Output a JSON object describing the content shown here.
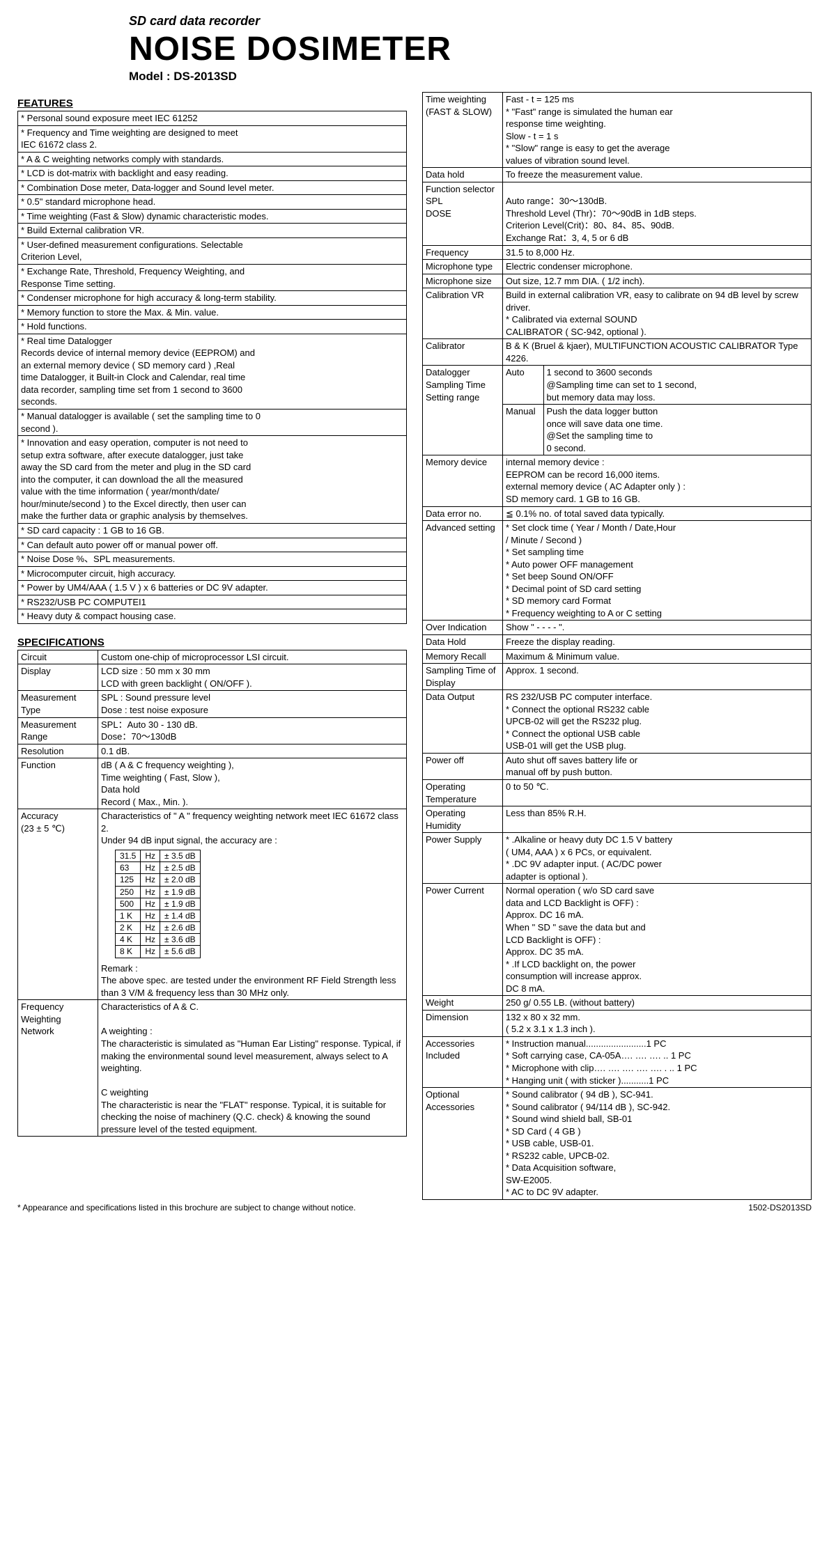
{
  "header": {
    "subtitle": "SD card data recorder",
    "title": "NOISE DOSIMETER",
    "model": "Model : DS-2013SD"
  },
  "features_heading": "FEATURES",
  "features": [
    "* Personal sound exposure meet IEC 61252",
    "* Frequency and Time weighting are designed to meet\n   IEC 61672 class 2.",
    "* A & C weighting networks comply with standards.",
    "* LCD is dot-matrix with backlight and easy reading.",
    "* Combination Dose meter, Data-logger and Sound level meter.",
    "* 0.5\" standard microphone head.",
    "* Time weighting (Fast & Slow) dynamic characteristic modes.",
    "* Build External calibration VR.",
    "* User-defined measurement configurations. Selectable\n   Criterion Level,",
    "* Exchange Rate, Threshold, Frequency Weighting, and\n   Response Time setting.",
    "* Condenser microphone for high accuracy & long-term stability.",
    "* Memory function to store the Max. & Min. value.",
    "* Hold  functions.",
    "* Real time Datalogger\n   Records device of internal memory device (EEPROM) and\n   an external memory device ( SD memory card ) ,Real\n   time Datalogger, it Built-in  Clock and Calendar, real time\n   data recorder, sampling time set from 1 second to 3600\n   seconds.",
    "* Manual datalogger is available ( set the sampling time to 0\n   second ).",
    "*  Innovation and easy operation,  computer is not need to\n   setup extra software, after execute datalogger, just take\n   away the SD card from the meter and plug in the SD card\n   into the computer, it can download the all the measured\n   value with the time information ( year/month/date/\n   hour/minute/second ) to the Excel directly, then user can\n   make the further data or graphic analysis by themselves.",
    "* SD card capacity : 1 GB to 16 GB.",
    "* Can default auto power off or manual power off.",
    "*  Noise Dose %、SPL measurements.",
    "* Microcomputer circuit, high accuracy.",
    "* Power by UM4/AAA ( 1.5 V ) x 6 batteries or DC 9V adapter.",
    "* RS232/USB PC COMPUTEI1",
    "* Heavy duty & compact housing case."
  ],
  "specs_heading": "SPECIFICATIONS",
  "specs_left": [
    {
      "k": "Circuit",
      "v": "Custom one-chip of microprocessor LSI circuit."
    },
    {
      "k": "Display",
      "v": "LCD size : 50 mm x 30 mm\nLCD with green backlight ( ON/OFF )."
    },
    {
      "k": "Measurement Type",
      "v": "SPL : Sound pressure level\nDose : test noise exposure"
    },
    {
      "k": "Measurement Range",
      "v": "SPL：Auto 30 - 130 dB.\nDose：70～130dB"
    },
    {
      "k": "Resolution",
      "v": "0.1 dB."
    },
    {
      "k": "Function",
      "v": "dB ( A & C frequency weighting ),\nTime weighting ( Fast, Slow ),\nData hold\nRecord ( Max., Min. )."
    },
    {
      "k": "Accuracy\n(23 ± 5 ℃)",
      "v": "__ACCURACY__"
    },
    {
      "k": "Frequency Weighting Network",
      "v": "Characteristics of A & C.\n\nA weighting :\nThe characteristic is simulated as \"Human Ear Listing\" response. Typical, if making the environmental sound level measurement, always select to A weighting.\n\nC weighting\nThe characteristic is near the \"FLAT\" response. Typical, it is suitable for checking the  noise of machinery (Q.C. check) & knowing the sound pressure level of the tested  equipment."
    }
  ],
  "accuracy": {
    "intro": "Characteristics of \" A \" frequency weighting network meet IEC 61672 class 2.\nUnder 94 dB input signal,  the accuracy are :",
    "rows": [
      [
        "31.5",
        "Hz",
        "± 3.5 dB"
      ],
      [
        "63",
        "Hz",
        "± 2.5 dB"
      ],
      [
        "125",
        "Hz",
        "± 2.0 dB"
      ],
      [
        "250",
        "Hz",
        "± 1.9 dB"
      ],
      [
        "500",
        "Hz",
        "± 1.9 dB"
      ],
      [
        "1 K",
        "Hz",
        "± 1.4 dB"
      ],
      [
        "2 K",
        "Hz",
        "± 2.6 dB"
      ],
      [
        "4 K",
        "Hz",
        "± 3.6 dB"
      ],
      [
        "8 K",
        "Hz",
        "± 5.6 dB"
      ]
    ],
    "remark": "Remark :\nThe above spec. are tested under the environment  RF Field Strength less than 3 V/M & frequency less than 30 MHz only."
  },
  "specs_right": [
    {
      "k": "Time weighting (FAST & SLOW)",
      "v": "Fast - t = 125 ms\n*  \"Fast\" range is simulated the human ear\n    response time weighting.\nSlow - t = 1 s\n*  \"Slow\" range is easy to get the average\n    values of vibration sound level."
    },
    {
      "k": "Data hold",
      "v": "To freeze the measurement value."
    },
    {
      "k": "Function selector\n    SPL\n    DOSE",
      "v": "\nAuto range：30～130dB.\nThreshold Level (Thr)：70～90dB in 1dB steps.\nCriterion Level(Crit)：80、84、85、90dB.\nExchange Rat：3, 4, 5 or 6 dB"
    },
    {
      "k": "Frequency",
      "v": "31.5 to 8,000 Hz."
    },
    {
      "k": "Microphone type",
      "v": "Electric condenser microphone."
    },
    {
      "k": "Microphone size",
      "v": "Out size, 12.7 mm DIA. ( 1/2 inch)."
    },
    {
      "k": "Calibration VR",
      "v": "Build in external calibration VR, easy to calibrate on 94 dB level by screw driver.\n*  Calibrated via external SOUND\n    CALIBRATOR ( SC-942, optional )."
    },
    {
      "k": "Calibrator",
      "v": "B & K (Bruel & kjaer), MULTIFUNCTION ACOUSTIC CALIBRATOR Type 4226."
    },
    {
      "k": "Datalogger Sampling Time Setting range",
      "v": "__SAMPLING__"
    },
    {
      "k": "Memory device",
      "v": "internal memory device :\n  EEPROM  can be record 16,000 items.\nexternal memory device ( AC Adapter only ) :\n  SD memory card. 1 GB to 16 GB."
    },
    {
      "k": "Data error no.",
      "v": "≦ 0.1% no. of total saved data typically."
    },
    {
      "k": "Advanced setting",
      "v": "*  Set clock time ( Year / Month / Date,Hour\n   / Minute / Second )\n*   Set sampling time\n*  Auto power OFF management\n*  Set beep Sound ON/OFF\n*  Decimal point of SD card setting\n*  SD memory card Format\n*  Frequency weighting  to A or C  setting"
    },
    {
      "k": "Over Indication",
      "v": "Show \" - - - - \"."
    },
    {
      "k": "Data Hold",
      "v": "Freeze the display reading."
    },
    {
      "k": "Memory Recall",
      "v": "Maximum & Minimum value."
    },
    {
      "k": "Sampling Time of Display",
      "v": "Approx. 1 second."
    },
    {
      "k": "Data Output",
      "v": "RS 232/USB PC computer interface.\n*  Connect the optional RS232 cable\n    UPCB-02 will get the RS232 plug.\n*  Connect the optional USB cable\n    USB-01 will get the USB plug."
    },
    {
      "k": "Power off",
      "v": "Auto shut off saves battery life or\nmanual off by push button."
    },
    {
      "k": "Operating Temperature",
      "v": "0 to 50 ℃."
    },
    {
      "k": "Operating Humidity",
      "v": "Less than 85% R.H."
    },
    {
      "k": "Power Supply",
      "v": "* .Alkaline or heavy duty DC 1.5 V battery\n    ( UM4, AAA ) x 6 PCs,  or equivalent.\n* .DC 9V adapter input. ( AC/DC power\n    adapter is optional )."
    },
    {
      "k": "Power Current",
      "v": "Normal operation ( w/o SD card save\ndata and LCD Backlight is OFF) :\n   Approx. DC  16  mA.\nWhen \" SD \" save the data but  and\nLCD Backlight is OFF) :\n   Approx. DC 35  mA.\n* .If LCD backlight on, the power\n    consumption will increase approx.\n    DC 8  mA."
    },
    {
      "k": "Weight",
      "v": "250 g/ 0.55 LB. (without battery)"
    },
    {
      "k": "Dimension",
      "v": "132 x 80 x 32 mm.\n( 5.2 x 3.1 x 1.3 inch )."
    },
    {
      "k": "Accessories Included",
      "v": "*  Instruction manual........................1 PC\n*  Soft carrying case, CA-05A…. …. …. .. 1 PC\n*  Microphone with clip…. …. …. …. …. . .. 1 PC\n*  Hanging unit ( with sticker )...........1 PC"
    },
    {
      "k": "Optional Accessories",
      "v": "*  Sound calibrator ( 94 dB ), SC-941.\n*  Sound calibrator ( 94/114 dB ), SC-942.\n*  Sound wind shield ball, SB-01\n*  SD Card ( 4 GB )\n*  USB cable, USB-01.\n*  RS232 cable, UPCB-02.\n*   Data Acquisition software,\n     SW-E2005.\n*  AC to DC 9V adapter."
    }
  ],
  "sampling": {
    "auto": "1 second to 3600 seconds\n@Sampling time can set to 1 second,\n   but memory data  may loss.",
    "manual": "Push the data logger button\nonce will save data one time.\n@Set the sampling time to\n   0 second."
  },
  "footer": {
    "note": "* Appearance and specifications listed in this brochure are subject to change without notice.",
    "code": "1502-DS2013SD"
  }
}
